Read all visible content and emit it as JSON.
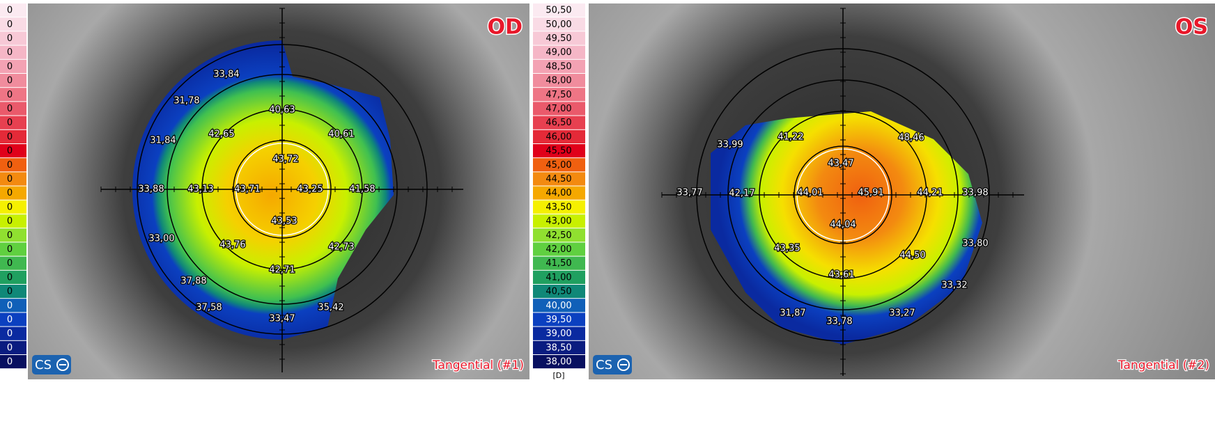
{
  "cropped_scale_labels": [
    "0",
    "0",
    "0",
    "0",
    "0",
    "0",
    "0",
    "0",
    "0",
    "0",
    "0",
    "0",
    "0",
    "0",
    "0",
    "0",
    "0",
    "0",
    "0",
    "0",
    "0",
    "0",
    "0",
    "0",
    "0",
    "0"
  ],
  "scale": {
    "unit": "[D]",
    "steps": [
      {
        "label": "50,50",
        "color": "#fbeaf1"
      },
      {
        "label": "50,00",
        "color": "#f9dbe5"
      },
      {
        "label": "49,50",
        "color": "#f7c9d6"
      },
      {
        "label": "49,00",
        "color": "#f5b6c6"
      },
      {
        "label": "48,50",
        "color": "#f3a2b3"
      },
      {
        "label": "48,00",
        "color": "#f08c9d"
      },
      {
        "label": "47,50",
        "color": "#ee7585"
      },
      {
        "label": "47,00",
        "color": "#ea5a6b"
      },
      {
        "label": "46,50",
        "color": "#e74050"
      },
      {
        "label": "46,00",
        "color": "#e42a38"
      },
      {
        "label": "45,50",
        "color": "#e0001a"
      },
      {
        "label": "45,00",
        "color": "#f06010"
      },
      {
        "label": "44,50",
        "color": "#f38a10"
      },
      {
        "label": "44,00",
        "color": "#f5a800"
      },
      {
        "label": "43,50",
        "color": "#f5f000"
      },
      {
        "label": "43,00",
        "color": "#c8f000"
      },
      {
        "label": "42,50",
        "color": "#90e030"
      },
      {
        "label": "42,00",
        "color": "#60d040"
      },
      {
        "label": "41,50",
        "color": "#40b850"
      },
      {
        "label": "41,00",
        "color": "#20a060"
      },
      {
        "label": "40,50",
        "color": "#108878"
      },
      {
        "label": "40,00",
        "color": "#1060b8"
      },
      {
        "label": "39,50",
        "color": "#0b40c0"
      },
      {
        "label": "39,00",
        "color": "#0a2aa0"
      },
      {
        "label": "38,50",
        "color": "#0a1c80"
      },
      {
        "label": "38,00",
        "color": "#081060"
      }
    ]
  },
  "panels": [
    {
      "eye": "OD",
      "mode": "Tangential (#1)",
      "logo": "CS",
      "labels": [
        "33,84",
        "31,78",
        "40,63",
        "42,65",
        "40,61",
        "31,84",
        "43,72",
        "33,88",
        "43,13",
        "43,71",
        "43,25",
        "41,58",
        "43,53",
        "33,00",
        "43,76",
        "42,73",
        "42,71",
        "37,88",
        "37,58",
        "35,42",
        "33,47"
      ]
    },
    {
      "eye": "OS",
      "mode": "Tangential (#2)",
      "logo": "CS",
      "labels": [
        "33,99",
        "41,22",
        "48,46",
        "43,47",
        "33,77",
        "42,17",
        "44,01",
        "45,91",
        "44,21",
        "33,98",
        "44,04",
        "33,80",
        "43,35",
        "44,50",
        "43,61",
        "33,32",
        "31,87",
        "33,78",
        "33,27"
      ]
    }
  ]
}
